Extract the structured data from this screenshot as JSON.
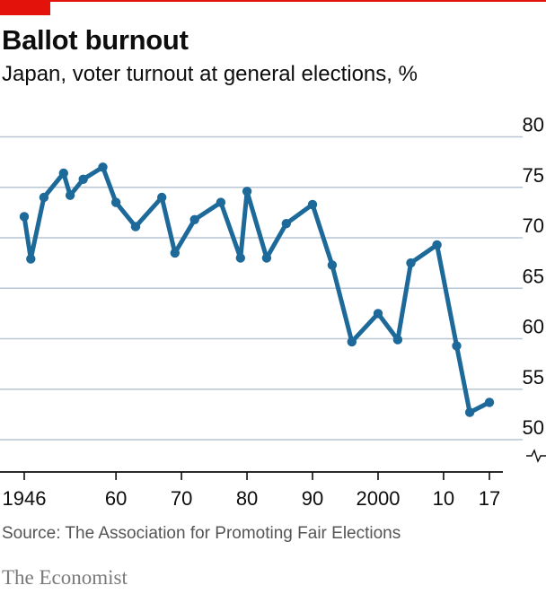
{
  "header": {
    "title": "Ballot burnout",
    "subtitle": "Japan, voter turnout at general elections, %"
  },
  "footer": {
    "source": "Source: The Association for Promoting Fair Elections",
    "brand": "The Economist"
  },
  "colors": {
    "accent": "#e3120b",
    "line": "#1d6a9a",
    "grid": "#b9c6d3"
  },
  "chart_data": {
    "type": "line",
    "title": "Ballot burnout",
    "subtitle": "Japan, voter turnout at general elections, %",
    "ylim": [
      48,
      80
    ],
    "xlim": [
      1944.5,
      2019.5
    ],
    "y_ticks": [
      50,
      55,
      60,
      65,
      70,
      75,
      80
    ],
    "y_axis_break": true,
    "y_axis_side": "right",
    "grid": "horizontal",
    "x_ticks": [
      {
        "value": 1946,
        "label": "1946"
      },
      {
        "value": 1960,
        "label": "60"
      },
      {
        "value": 1970,
        "label": "70"
      },
      {
        "value": 1980,
        "label": "80"
      },
      {
        "value": 1990,
        "label": "90"
      },
      {
        "value": 2000,
        "label": "2000"
      },
      {
        "value": 2010,
        "label": "10"
      },
      {
        "value": 2017,
        "label": "17"
      }
    ],
    "series": [
      {
        "x": [
          1946,
          1947,
          1949,
          1952,
          1953,
          1955,
          1958,
          1960,
          1963,
          1967,
          1969,
          1972,
          1976,
          1979,
          1980,
          1983,
          1986,
          1990,
          1993,
          1996,
          2000,
          2003,
          2005,
          2009,
          2012,
          2014,
          2017
        ],
        "y": [
          72.1,
          67.9,
          74.0,
          76.4,
          74.2,
          75.8,
          77.0,
          73.5,
          71.1,
          74.0,
          68.5,
          71.8,
          73.5,
          68.0,
          74.6,
          68.0,
          71.4,
          73.3,
          67.3,
          59.7,
          62.5,
          59.9,
          67.5,
          69.3,
          59.3,
          52.7,
          53.7
        ]
      }
    ]
  }
}
